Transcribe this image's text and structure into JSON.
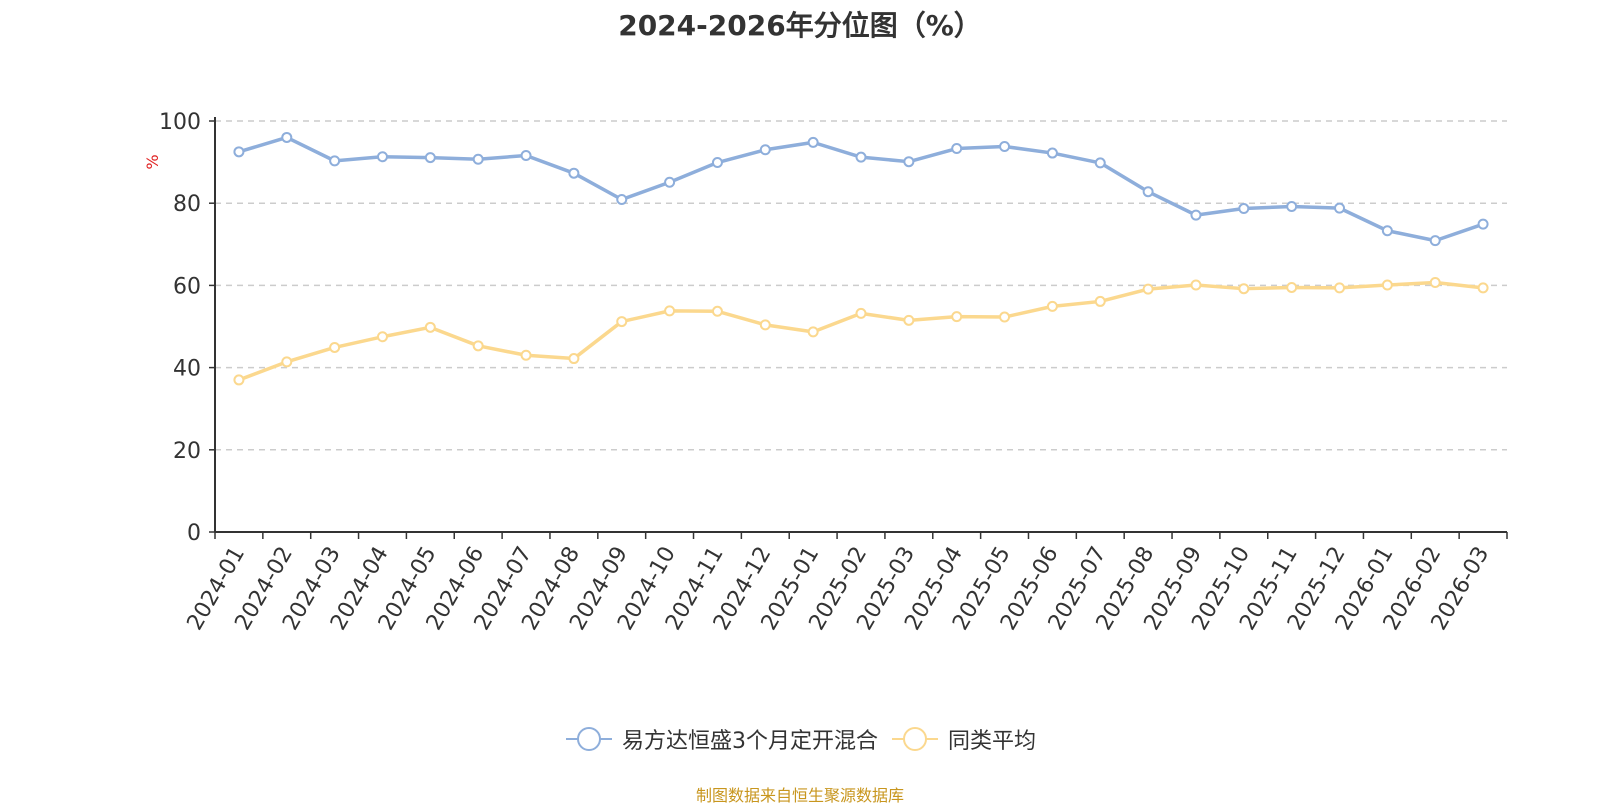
{
  "title": "2024-2026年分位图（%）",
  "source_note": "制图数据来自恒生聚源数据库",
  "chart_data": {
    "type": "line",
    "title": "2024-2026年分位图（%）",
    "ylabel": "%",
    "ylim": [
      0,
      100
    ],
    "yticks": [
      0,
      20,
      40,
      60,
      80,
      100
    ],
    "grid": true,
    "legend_position": "bottom-center",
    "categories": [
      "2024-01",
      "2024-02",
      "2024-03",
      "2024-04",
      "2024-05",
      "2024-06",
      "2024-07",
      "2024-08",
      "2024-09",
      "2024-10",
      "2024-11",
      "2024-12",
      "2025-01",
      "2025-02",
      "2025-03",
      "2025-04",
      "2025-05",
      "2025-06",
      "2025-07",
      "2025-08",
      "2025-09",
      "2025-10",
      "2025-11",
      "2025-12",
      "2026-01",
      "2026-02",
      "2026-03"
    ],
    "series": [
      {
        "name": "易方达恒盛3个月定开混合",
        "color": "#8eaedb",
        "values": [
          92.5,
          96.0,
          90.3,
          91.3,
          91.1,
          90.7,
          91.6,
          87.3,
          80.9,
          85.1,
          89.9,
          93.0,
          94.8,
          91.2,
          90.1,
          93.3,
          93.8,
          92.2,
          89.8,
          82.8,
          77.1,
          78.7,
          79.2,
          78.8,
          73.3,
          70.9,
          74.9
        ]
      },
      {
        "name": "同类平均",
        "color": "#fbd88e",
        "values": [
          37.0,
          41.4,
          44.9,
          47.5,
          49.8,
          45.3,
          43.0,
          42.2,
          51.2,
          53.8,
          53.7,
          50.4,
          48.7,
          53.2,
          51.5,
          52.4,
          52.3,
          54.9,
          56.1,
          59.1,
          60.1,
          59.2,
          59.5,
          59.4,
          60.1,
          60.7,
          59.4
        ]
      }
    ]
  }
}
